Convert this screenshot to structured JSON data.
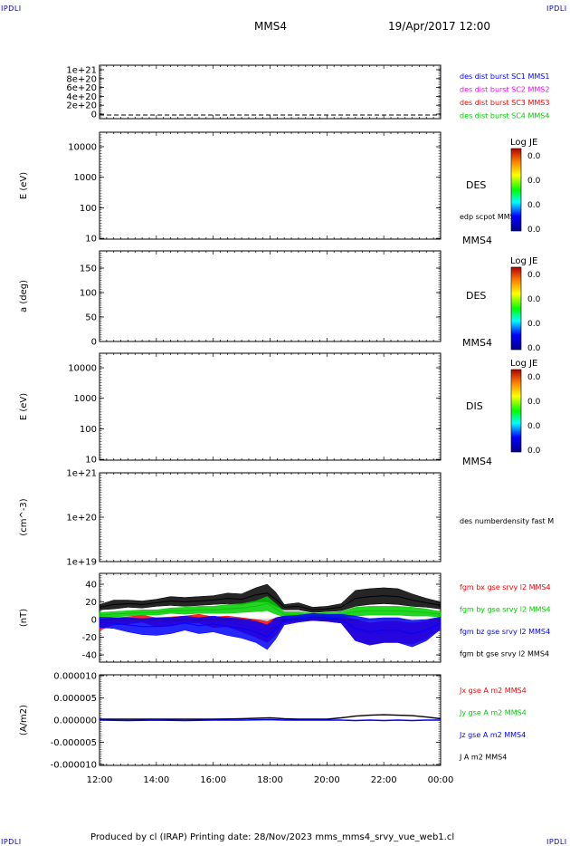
{
  "corner_labels": {
    "top_left": "IPDLI",
    "top_right": "IPDLI",
    "bottom_left": "IPDLI",
    "bottom_right": "IPDLI"
  },
  "header": {
    "spacecraft": "MMS4",
    "datetime": "19/Apr/2017 12:00"
  },
  "footer": {
    "text": "Produced by cl (IRAP)   Printing date: 28/Nov/2023   mms_mms4_srvy_vue_web1.cl"
  },
  "time_axis": {
    "tick_labels": [
      "12:00",
      "14:00",
      "16:00",
      "18:00",
      "20:00",
      "22:00",
      "00:00"
    ],
    "range_hours": [
      12,
      24
    ]
  },
  "colors": {
    "red": "#ff0000",
    "green": "#00cc00",
    "blue": "#0000ff",
    "black": "#000000",
    "magenta": "#ff00ff",
    "ident_blue": "#0000cc"
  },
  "chart_data": [
    {
      "type": "line",
      "id": "distribution",
      "ylabel": "",
      "yticks": [
        "1e+21",
        "8e+20",
        "6e+20",
        "4e+20",
        "2e+20",
        "0"
      ],
      "ylim": [
        0,
        1.1e+21
      ],
      "reference_line": {
        "y": 0,
        "style": "dashed"
      },
      "legend": [
        {
          "label": "des dist burst SC1 MMS1",
          "color": "#0000ff"
        },
        {
          "label": "des dist burst SC2 MMS2",
          "color": "#ff00ff"
        },
        {
          "label": "des dist burst SC3 MMS3",
          "color": "#ff0000"
        },
        {
          "label": "des dist burst SC4 MMS4",
          "color": "#00cc00"
        }
      ]
    },
    {
      "type": "heatmap",
      "id": "des-energy",
      "ylabel": "E (eV)",
      "scale": "log",
      "yticks": [
        "10000",
        "1000",
        "100",
        "10"
      ],
      "instrument": "DES",
      "spacecraft": "MMS4",
      "overlay_label": "edp scpot MMS4",
      "colorbar": {
        "title": "Log JE",
        "labels": [
          "0.0",
          "0.0",
          "0.0",
          "0.0"
        ]
      }
    },
    {
      "type": "heatmap",
      "id": "des-pitch",
      "ylabel": "a (deg)",
      "yticks": [
        "150",
        "100",
        "50",
        "0"
      ],
      "instrument": "DES",
      "spacecraft": "MMS4",
      "colorbar": {
        "title": "Log JE",
        "labels": [
          "0.0",
          "0.0",
          "0.0",
          "0.0"
        ]
      }
    },
    {
      "type": "heatmap",
      "id": "dis-energy",
      "ylabel": "E (eV)",
      "scale": "log",
      "yticks": [
        "10000",
        "1000",
        "100",
        "10"
      ],
      "instrument": "DIS",
      "spacecraft": "MMS4",
      "colorbar": {
        "title": "Log JE",
        "labels": [
          "0.0",
          "0.0",
          "0.0",
          "0.0"
        ]
      }
    },
    {
      "type": "line",
      "id": "density",
      "ylabel": "(cm^-3)",
      "scale": "log",
      "yticks": [
        "1e+21",
        "1e+20",
        "1e+19"
      ],
      "legend": [
        {
          "label": "des numberdensity fast M",
          "color": "#000000"
        }
      ]
    },
    {
      "type": "line",
      "id": "magnetic-field",
      "ylabel": "(nT)",
      "ylim": [
        -50,
        50
      ],
      "yticks": [
        "40",
        "20",
        "0",
        "-20",
        "-40"
      ],
      "legend": [
        {
          "label": "fgm bx gse srvy l2 MMS4",
          "color": "#ff0000"
        },
        {
          "label": "fgm by gse srvy l2 MMS4",
          "color": "#00cc00"
        },
        {
          "label": "fgm bz gse srvy l2 MMS4",
          "color": "#0000ff"
        },
        {
          "label": "fgm bt gse srvy l2 MMS4",
          "color": "#000000"
        }
      ],
      "series": [
        {
          "name": "fgm bt gse srvy l2 MMS4",
          "x": [
            12.0,
            12.5,
            13.0,
            13.5,
            14.0,
            14.5,
            15.0,
            15.5,
            16.0,
            16.5,
            17.0,
            17.5,
            17.9,
            18.2,
            18.5,
            19.0,
            19.5,
            20.0,
            20.5,
            21.0,
            21.5,
            22.0,
            22.5,
            23.0,
            23.5,
            24.0
          ],
          "y": [
            14,
            17,
            18,
            17,
            19,
            21,
            20,
            21,
            22,
            24,
            23,
            28,
            30,
            23,
            14,
            15,
            11,
            12,
            14,
            24,
            26,
            27,
            26,
            22,
            19,
            16
          ],
          "band": [
            3,
            5,
            4,
            4,
            4,
            5,
            5,
            5,
            5,
            6,
            6,
            8,
            10,
            8,
            3,
            4,
            3,
            3,
            4,
            9,
            9,
            9,
            9,
            7,
            5,
            4
          ]
        },
        {
          "name": "fgm bx gse srvy l2 MMS4",
          "x": [
            12.0,
            12.5,
            13.0,
            13.5,
            14.0,
            14.5,
            15.0,
            15.5,
            16.0,
            16.5,
            17.0,
            17.5,
            17.9,
            18.2,
            18.5,
            19.0,
            19.5,
            20.0,
            20.5,
            21.0,
            21.5,
            22.0,
            22.5,
            23.0,
            23.5,
            24.0
          ],
          "y": [
            -6,
            -2,
            -1,
            1,
            -3,
            -2,
            0,
            1,
            -3,
            -2,
            -6,
            -10,
            -14,
            -8,
            0,
            1,
            2,
            1,
            0,
            -12,
            -16,
            -14,
            -14,
            -16,
            -12,
            -4
          ],
          "band": [
            6,
            4,
            4,
            4,
            5,
            5,
            4,
            5,
            6,
            6,
            8,
            10,
            12,
            10,
            4,
            3,
            3,
            3,
            4,
            12,
            12,
            12,
            12,
            12,
            10,
            6
          ]
        },
        {
          "name": "fgm by gse srvy l2 MMS4",
          "x": [
            12.0,
            12.5,
            13.0,
            13.5,
            14.0,
            14.5,
            15.0,
            15.5,
            16.0,
            16.5,
            17.0,
            17.5,
            17.9,
            18.2,
            18.5,
            19.0,
            19.5,
            20.0,
            20.5,
            21.0,
            21.5,
            22.0,
            22.5,
            23.0,
            23.5,
            24.0
          ],
          "y": [
            5,
            6,
            7,
            8,
            8,
            10,
            10,
            11,
            11,
            12,
            13,
            15,
            18,
            12,
            6,
            6,
            5,
            5,
            6,
            9,
            10,
            10,
            10,
            9,
            8,
            6
          ],
          "band": [
            3,
            3,
            3,
            3,
            3,
            3,
            4,
            4,
            4,
            5,
            5,
            6,
            8,
            6,
            3,
            3,
            2,
            3,
            3,
            5,
            5,
            5,
            5,
            5,
            4,
            3
          ]
        },
        {
          "name": "fgm bz gse srvy l2 MMS4",
          "x": [
            12.0,
            12.5,
            13.0,
            13.5,
            14.0,
            14.5,
            15.0,
            15.5,
            16.0,
            16.5,
            17.0,
            17.5,
            17.9,
            18.2,
            18.5,
            19.0,
            19.5,
            20.0,
            20.5,
            21.0,
            21.5,
            22.0,
            22.5,
            23.0,
            23.5,
            24.0
          ],
          "y": [
            -3,
            -4,
            -6,
            -8,
            -8,
            -7,
            -4,
            -7,
            -5,
            -8,
            -10,
            -14,
            -20,
            -10,
            -1,
            1,
            3,
            2,
            1,
            -10,
            -14,
            -12,
            -12,
            -16,
            -12,
            -4
          ],
          "band": [
            6,
            6,
            8,
            9,
            10,
            9,
            8,
            9,
            9,
            10,
            11,
            12,
            14,
            12,
            5,
            4,
            4,
            4,
            5,
            14,
            15,
            14,
            14,
            15,
            12,
            7
          ]
        }
      ]
    },
    {
      "type": "line",
      "id": "current-density",
      "ylabel": "(A/m2)",
      "ylim": [
        -1e-05,
        1e-05
      ],
      "yticks": [
        "0.000010",
        "0.000005",
        "0.000000",
        "-0.000005",
        "-0.000010"
      ],
      "legend": [
        {
          "label": "Jx gse A m2 MMS4",
          "color": "#ff0000"
        },
        {
          "label": "Jy gse A m2 MMS4",
          "color": "#00cc00"
        },
        {
          "label": "Jz gse A m2 MMS4",
          "color": "#0000ff"
        },
        {
          "label": "J A m2 MMS4",
          "color": "#000000"
        }
      ],
      "series": [
        {
          "name": "J A m2 MMS4",
          "x": [
            12.0,
            13.0,
            14.0,
            15.0,
            16.0,
            17.0,
            18.0,
            18.5,
            19.0,
            20.0,
            20.5,
            21.0,
            21.5,
            22.0,
            22.5,
            23.0,
            23.5,
            24.0
          ],
          "y": [
            2e-07,
            2e-07,
            2e-07,
            2e-07,
            2e-07,
            3e-07,
            5e-07,
            3e-07,
            2e-07,
            2e-07,
            5e-07,
            9e-07,
            1.1e-06,
            1.2e-06,
            1.1e-06,
            1e-06,
            7e-07,
            3e-07
          ]
        },
        {
          "name": "Jz gse A m2 MMS4",
          "x": [
            12.0,
            13.0,
            14.0,
            15.0,
            16.0,
            17.0,
            18.0,
            18.5,
            19.0,
            20.0,
            20.5,
            21.0,
            21.5,
            22.0,
            22.5,
            23.0,
            23.5,
            24.0
          ],
          "y": [
            0,
            -1e-07,
            0,
            -1e-07,
            0,
            0,
            1e-07,
            0,
            0,
            0,
            0,
            -1e-07,
            0,
            -1e-07,
            0,
            -1e-07,
            0,
            0
          ]
        }
      ]
    }
  ]
}
